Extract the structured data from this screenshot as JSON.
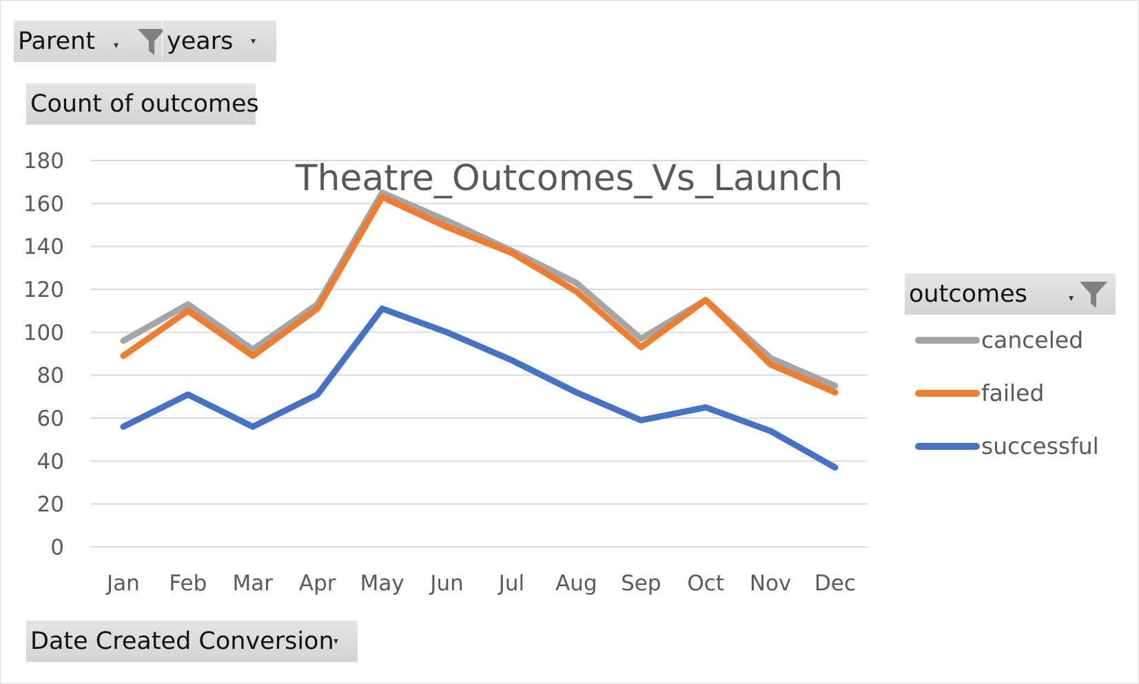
{
  "filters": {
    "parent_label": "Parent",
    "years_label": "years",
    "values_label": "Count of outcomes",
    "axis_field_label": "Date Created Conversion",
    "legend_field_label": "outcomes"
  },
  "icons": {
    "filter": "funnel-icon",
    "dropdown": "dropdown-arrow-icon"
  },
  "chart_data": {
    "type": "line",
    "title": "Theatre_Outcomes_Vs_Launch",
    "xlabel": "",
    "ylabel": "",
    "categories": [
      "Jan",
      "Feb",
      "Mar",
      "Apr",
      "May",
      "Jun",
      "Jul",
      "Aug",
      "Sep",
      "Oct",
      "Nov",
      "Dec"
    ],
    "ylim": [
      0,
      180
    ],
    "yticks": [
      0,
      20,
      40,
      60,
      80,
      100,
      120,
      140,
      160,
      180
    ],
    "grid": true,
    "legend": "right",
    "series": [
      {
        "name": "canceled",
        "color": "#a5a5a5",
        "values": [
          96,
          113,
          92,
          113,
          165,
          152,
          138,
          123,
          97,
          115,
          88,
          75
        ]
      },
      {
        "name": "failed",
        "color": "#ed7d31",
        "values": [
          89,
          110,
          89,
          111,
          163,
          149,
          137,
          119,
          93,
          115,
          85,
          72
        ]
      },
      {
        "name": "successful",
        "color": "#4472c4",
        "values": [
          56,
          71,
          56,
          71,
          111,
          100,
          87,
          72,
          59,
          65,
          54,
          37
        ]
      }
    ]
  }
}
